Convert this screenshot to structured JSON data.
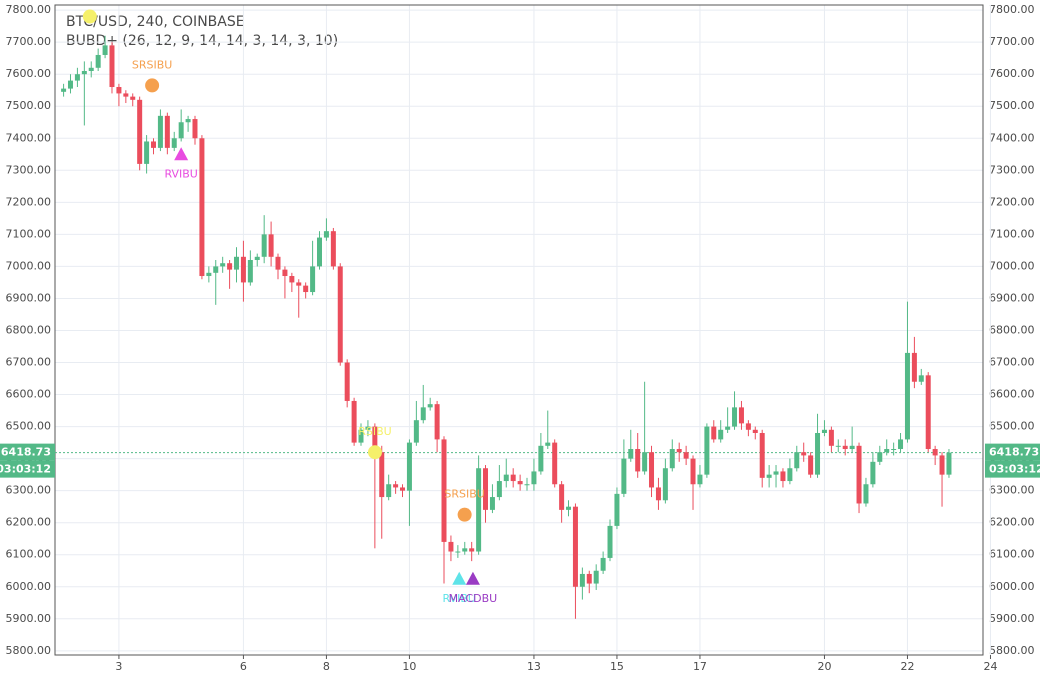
{
  "chart_data": {
    "type": "candlestick",
    "title": "BTC/USD, 240, COINBASE",
    "subtitle": "BUBD+ (26, 12, 9, 14, 14, 3, 14, 3, 10)",
    "up_color": "#53b987",
    "down_color": "#eb4d5c",
    "grid": true,
    "xlim": [
      1.46,
      23.82
    ],
    "xticks": [
      3,
      6,
      8,
      10,
      13,
      15,
      17,
      20,
      22,
      24
    ],
    "ylim": [
      5787,
      7816
    ],
    "yticks": [
      {
        "value": 5800,
        "label": "5800.00"
      },
      {
        "value": 5900,
        "label": "5900.00"
      },
      {
        "value": 6000,
        "label": "6000.00"
      },
      {
        "value": 6100,
        "label": "6100.00"
      },
      {
        "value": 6200,
        "label": "6200.00"
      },
      {
        "value": 6300,
        "label": "6300.00"
      },
      {
        "value": 6400,
        "label": "6400.00"
      },
      {
        "value": 6500,
        "label": "6500.00"
      },
      {
        "value": 6600,
        "label": "6600.00"
      },
      {
        "value": 6700,
        "label": "6700.00"
      },
      {
        "value": 6800,
        "label": "6800.00"
      },
      {
        "value": 6900,
        "label": "6900.00"
      },
      {
        "value": 7000,
        "label": "7000.00"
      },
      {
        "value": 7100,
        "label": "7100.00"
      },
      {
        "value": 7200,
        "label": "7200.00"
      },
      {
        "value": 7300,
        "label": "7300.00"
      },
      {
        "value": 7400,
        "label": "7400.00"
      },
      {
        "value": 7500,
        "label": "7500.00"
      },
      {
        "value": 7600,
        "label": "7600.00"
      },
      {
        "value": 7700,
        "label": "7700.00"
      },
      {
        "value": 7800,
        "label": "7800.00"
      }
    ],
    "last_price": 6418.73,
    "countdown": "03:03:12",
    "x": [
      1.667,
      1.833,
      2,
      2.167,
      2.333,
      2.5,
      2.667,
      2.833,
      3,
      3.167,
      3.333,
      3.5,
      3.667,
      3.833,
      4,
      4.167,
      4.333,
      4.5,
      4.667,
      4.833,
      5,
      5.167,
      5.333,
      5.5,
      5.667,
      5.833,
      6,
      6.167,
      6.333,
      6.5,
      6.667,
      6.833,
      7,
      7.167,
      7.333,
      7.5,
      7.667,
      7.833,
      8,
      8.167,
      8.333,
      8.5,
      8.667,
      8.833,
      9,
      9.167,
      9.333,
      9.5,
      9.667,
      9.833,
      10,
      10.167,
      10.333,
      10.5,
      10.667,
      10.833,
      11,
      11.167,
      11.333,
      11.5,
      11.667,
      11.833,
      12,
      12.167,
      12.333,
      12.5,
      12.667,
      12.833,
      13,
      13.167,
      13.333,
      13.5,
      13.667,
      13.833,
      14,
      14.167,
      14.333,
      14.5,
      14.667,
      14.833,
      15,
      15.167,
      15.333,
      15.5,
      15.667,
      15.833,
      16,
      16.167,
      16.333,
      16.5,
      16.667,
      16.833,
      17,
      17.167,
      17.333,
      17.5,
      17.667,
      17.833,
      18,
      18.167,
      18.333,
      18.5,
      18.667,
      18.833,
      19,
      19.167,
      19.333,
      19.5,
      19.667,
      19.833,
      20,
      20.167,
      20.333,
      20.5,
      20.667,
      20.833,
      21,
      21.167,
      21.333,
      21.5,
      21.667,
      21.833,
      22,
      22.167,
      22.333,
      22.5,
      22.667,
      22.833,
      23
    ],
    "open": [
      7545,
      7555,
      7580,
      7600,
      7610,
      7620,
      7660,
      7690,
      7560,
      7540,
      7530,
      7520,
      7320,
      7390,
      7370,
      7470,
      7370,
      7400,
      7450,
      7460,
      7400,
      6970,
      6980,
      7000,
      7010,
      6990,
      7030,
      6950,
      7020,
      7030,
      7100,
      7030,
      6990,
      6970,
      6950,
      6940,
      6920,
      7000,
      7090,
      7110,
      7000,
      6700,
      6580,
      6450,
      6490,
      6500,
      6420,
      6280,
      6320,
      6310,
      6300,
      6450,
      6520,
      6560,
      6570,
      6460,
      6140,
      6110,
      6110,
      6120,
      6110,
      6370,
      6240,
      6280,
      6330,
      6350,
      6330,
      6320,
      6320,
      6360,
      6440,
      6450,
      6320,
      6240,
      6250,
      6000,
      6040,
      6010,
      6050,
      6090,
      6190,
      6290,
      6400,
      6430,
      6360,
      6420,
      6310,
      6270,
      6370,
      6430,
      6420,
      6400,
      6320,
      6350,
      6500,
      6460,
      6490,
      6500,
      6560,
      6510,
      6490,
      6480,
      6340,
      6350,
      6360,
      6330,
      6370,
      6420,
      6410,
      6350,
      6480,
      6490,
      6440,
      6440,
      6430,
      6440,
      6260,
      6320,
      6390,
      6420,
      6430,
      6430,
      6460,
      6730,
      6640,
      6660,
      6430,
      6410,
      6350
    ],
    "high": [
      7570,
      7600,
      7620,
      7640,
      7640,
      7680,
      7720,
      7700,
      7570,
      7550,
      7540,
      7530,
      7410,
      7400,
      7490,
      7480,
      7420,
      7490,
      7470,
      7470,
      7410,
      7000,
      7020,
      7030,
      7020,
      7060,
      7080,
      7050,
      7040,
      7160,
      7140,
      7040,
      7000,
      6980,
      6960,
      6950,
      7080,
      7110,
      7150,
      7120,
      7010,
      6710,
      6590,
      6510,
      6520,
      6510,
      6440,
      6350,
      6330,
      6320,
      6460,
      6580,
      6630,
      6590,
      6580,
      6470,
      6160,
      6130,
      6140,
      6140,
      6410,
      6380,
      6320,
      6380,
      6400,
      6370,
      6350,
      6340,
      6400,
      6480,
      6550,
      6460,
      6330,
      6270,
      6260,
      6060,
      6050,
      6070,
      6110,
      6210,
      6310,
      6460,
      6490,
      6480,
      6640,
      6440,
      6340,
      6400,
      6460,
      6450,
      6440,
      6410,
      6380,
      6510,
      6520,
      6520,
      6560,
      6610,
      6580,
      6520,
      6500,
      6490,
      6380,
      6380,
      6370,
      6400,
      6440,
      6450,
      6420,
      6540,
      6520,
      6500,
      6460,
      6460,
      6500,
      6450,
      6340,
      6420,
      6440,
      6460,
      6450,
      6480,
      6890,
      6780,
      6680,
      6670,
      6440,
      6420,
      6430
    ],
    "low": [
      7530,
      7540,
      7560,
      7440,
      7590,
      7610,
      7650,
      7540,
      7500,
      7510,
      7500,
      7300,
      7290,
      7350,
      7360,
      7350,
      7360,
      7390,
      7420,
      7380,
      6960,
      6950,
      6880,
      6980,
      6930,
      6950,
      6890,
      6940,
      7000,
      7010,
      7000,
      6960,
      6900,
      6920,
      6840,
      6900,
      6910,
      6990,
      7080,
      6990,
      6690,
      6560,
      6440,
      6440,
      6470,
      6120,
      6150,
      6270,
      6290,
      6280,
      6190,
      6440,
      6510,
      6550,
      6420,
      6010,
      6080,
      6090,
      6100,
      6080,
      6100,
      6200,
      6230,
      6270,
      6310,
      6310,
      6300,
      6300,
      6300,
      6350,
      6430,
      6310,
      6200,
      6220,
      5900,
      5960,
      5980,
      5990,
      6040,
      6080,
      6180,
      6280,
      6390,
      6340,
      6350,
      6280,
      6240,
      6260,
      6360,
      6390,
      6380,
      6240,
      6310,
      6340,
      6450,
      6450,
      6480,
      6490,
      6490,
      6470,
      6460,
      6310,
      6310,
      6310,
      6310,
      6320,
      6360,
      6390,
      6340,
      6340,
      6470,
      6420,
      6420,
      6410,
      6420,
      6230,
      6250,
      6310,
      6380,
      6410,
      6410,
      6420,
      6450,
      6620,
      6630,
      6420,
      6380,
      6250,
      6340
    ],
    "close": [
      7555,
      7580,
      7600,
      7610,
      7620,
      7660,
      7690,
      7560,
      7540,
      7530,
      7520,
      7320,
      7390,
      7370,
      7470,
      7370,
      7400,
      7450,
      7460,
      7400,
      6970,
      6980,
      7000,
      7010,
      6990,
      7030,
      6950,
      7020,
      7030,
      7100,
      7030,
      6990,
      6970,
      6950,
      6940,
      6920,
      7000,
      7090,
      7110,
      7000,
      6700,
      6580,
      6450,
      6490,
      6500,
      6420,
      6280,
      6320,
      6310,
      6300,
      6450,
      6520,
      6560,
      6570,
      6460,
      6140,
      6110,
      6110,
      6120,
      6110,
      6370,
      6240,
      6280,
      6330,
      6350,
      6330,
      6320,
      6320,
      6360,
      6440,
      6450,
      6320,
      6240,
      6250,
      6000,
      6040,
      6010,
      6050,
      6090,
      6190,
      6290,
      6400,
      6430,
      6360,
      6420,
      6310,
      6270,
      6370,
      6430,
      6420,
      6400,
      6320,
      6350,
      6500,
      6460,
      6490,
      6500,
      6560,
      6510,
      6490,
      6480,
      6340,
      6350,
      6360,
      6330,
      6370,
      6420,
      6410,
      6350,
      6480,
      6490,
      6440,
      6440,
      6430,
      6440,
      6260,
      6320,
      6390,
      6420,
      6430,
      6430,
      6460,
      6730,
      6640,
      6660,
      6430,
      6410,
      6350,
      6418.73
    ],
    "markers": [
      {
        "x": 2.3,
        "y": 7780,
        "shape": "circle",
        "color": "#f5f06a"
      },
      {
        "label": "SRSIBU",
        "x": 3.8,
        "y": 7565,
        "shape": "circle",
        "color": "#f5a04e"
      },
      {
        "label": "RVIBU",
        "x": 4.5,
        "y": 7350,
        "shape": "triangle",
        "color": "#e84ce0"
      },
      {
        "label": "RSIBU",
        "x": 9.17,
        "y": 6420,
        "shape": "circle",
        "color": "#f5f06a"
      },
      {
        "label": "SRSIBU",
        "x": 11.33,
        "y": 6225,
        "shape": "circle",
        "color": "#f5a04e"
      },
      {
        "label": "RVIBU",
        "x": 11.2,
        "y": 6025,
        "shape": "triangle",
        "color": "#5ee3e8"
      },
      {
        "label": "MACDBU",
        "x": 11.53,
        "y": 6025,
        "shape": "triangle",
        "color": "#9a3cc4"
      }
    ]
  }
}
